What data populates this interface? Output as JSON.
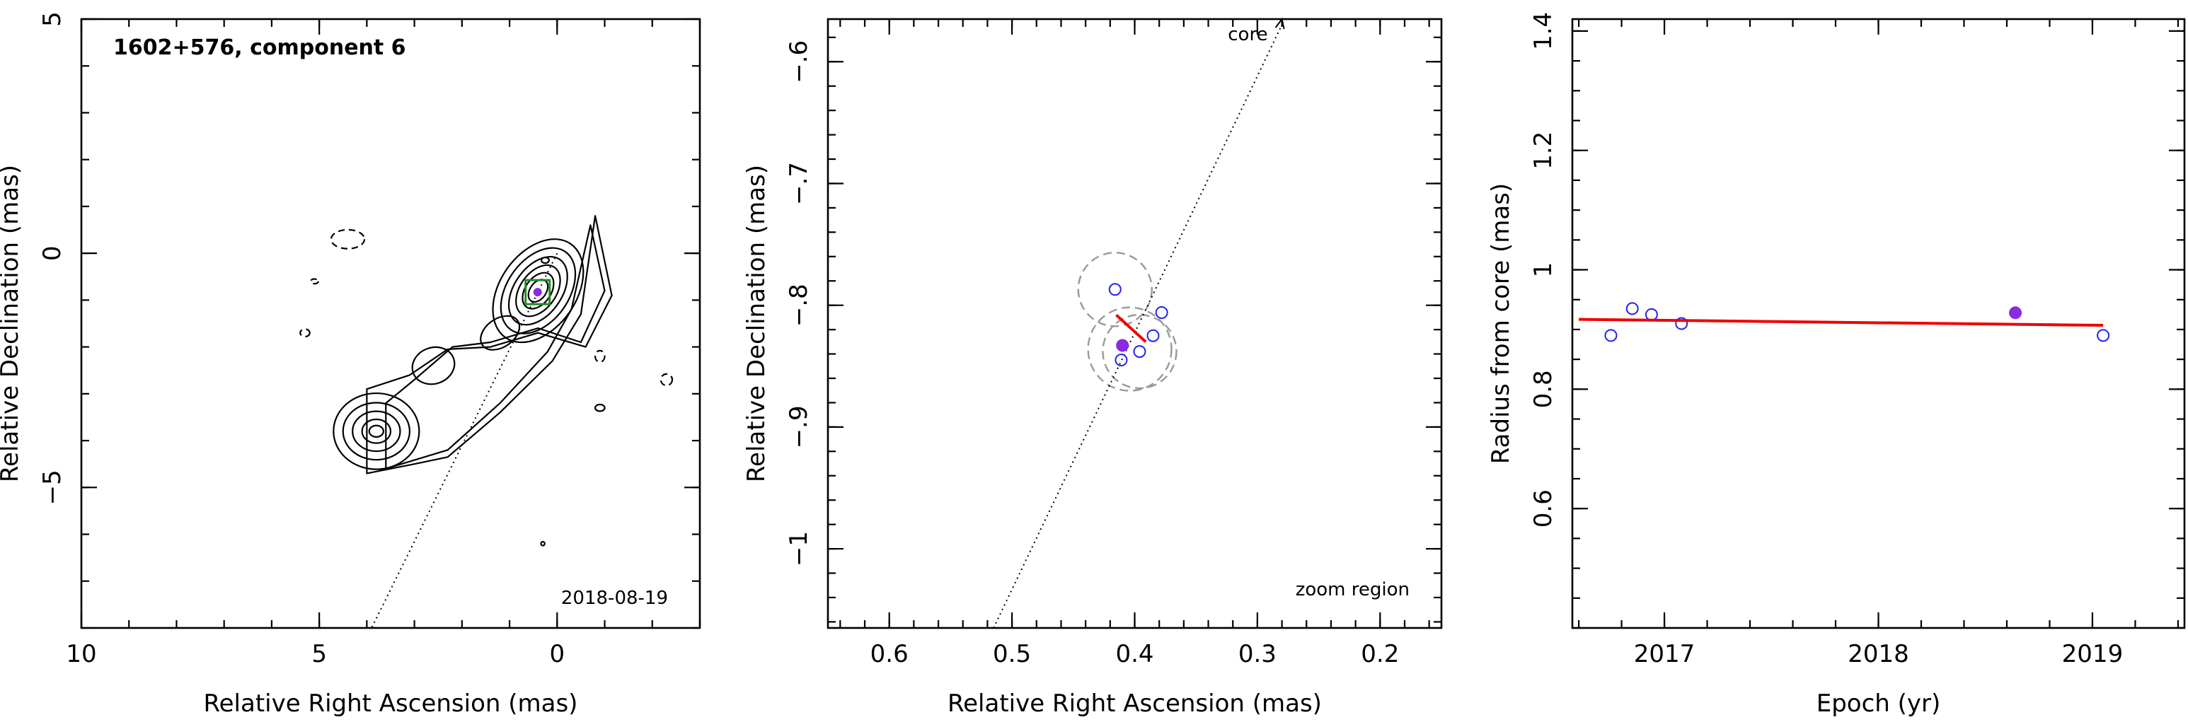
{
  "chart_data": [
    {
      "type": "contour",
      "title": "1602+576, component 6",
      "epoch_label": "2018-08-19",
      "xlabel": "Relative Right Ascension (mas)",
      "ylabel": "Relative Declination (mas)",
      "xlim": [
        10,
        -3
      ],
      "ylim": [
        -8,
        5
      ],
      "xticks": [
        10,
        5,
        0
      ],
      "yticks": [
        5,
        0,
        -5
      ],
      "component_position": [
        0.41,
        -0.83
      ],
      "core_direction_line": [
        [
          0.0,
          0.0
        ],
        [
          3.9,
          -8.0
        ]
      ]
    },
    {
      "type": "scatter",
      "note": "zoom region",
      "arrow_label": "core",
      "xlabel": "Relative Right Ascension (mas)",
      "ylabel": "Relative Declination (mas)",
      "xlim": [
        0.65,
        0.15
      ],
      "ylim": [
        -1.065,
        -0.565
      ],
      "xticks": [
        0.6,
        0.5,
        0.4,
        0.3,
        0.2
      ],
      "yticks": [
        -0.6,
        -0.7,
        -0.8,
        -0.9,
        -1
      ],
      "open_points": [
        {
          "x": 0.416,
          "y": -0.787
        },
        {
          "x": 0.378,
          "y": -0.806
        },
        {
          "x": 0.385,
          "y": -0.825
        },
        {
          "x": 0.396,
          "y": -0.838
        },
        {
          "x": 0.411,
          "y": -0.845
        }
      ],
      "filled_point": {
        "x": 0.41,
        "y": -0.833
      },
      "fit_segment": [
        [
          0.415,
          -0.808
        ],
        [
          0.391,
          -0.83
        ]
      ],
      "uncertainty_circles": [
        {
          "x": 0.416,
          "y": -0.787,
          "r": 0.03
        },
        {
          "x": 0.396,
          "y": -0.838,
          "r": 0.03
        },
        {
          "x": 0.404,
          "y": -0.836,
          "r": 0.034
        }
      ],
      "core_direction_line": [
        [
          0.515,
          -1.065
        ],
        [
          0.28,
          -0.565
        ]
      ],
      "colors": {
        "points": "#2222ee",
        "filled": "#8a2be2",
        "fit": "#ee0000",
        "circles": "#999999"
      }
    },
    {
      "type": "scatter",
      "xlabel": "Epoch (yr)",
      "ylabel": "Radius from core (mas)",
      "xlim": [
        2016.57,
        2019.43
      ],
      "ylim": [
        0.4,
        1.42
      ],
      "xticks": [
        2017,
        2018,
        2019
      ],
      "yticks": [
        0.6,
        0.8,
        1,
        1.2,
        1.4
      ],
      "open_points": [
        {
          "x": 2016.75,
          "y": 0.89
        },
        {
          "x": 2016.85,
          "y": 0.935
        },
        {
          "x": 2016.94,
          "y": 0.925
        },
        {
          "x": 2017.08,
          "y": 0.91
        },
        {
          "x": 2019.05,
          "y": 0.89
        }
      ],
      "filled_point": {
        "x": 2018.64,
        "y": 0.928
      },
      "fit_line": [
        [
          2016.6,
          0.917
        ],
        [
          2019.05,
          0.907
        ]
      ],
      "colors": {
        "points": "#2222ee",
        "filled": "#8a2be2",
        "fit": "#ee0000"
      }
    }
  ]
}
